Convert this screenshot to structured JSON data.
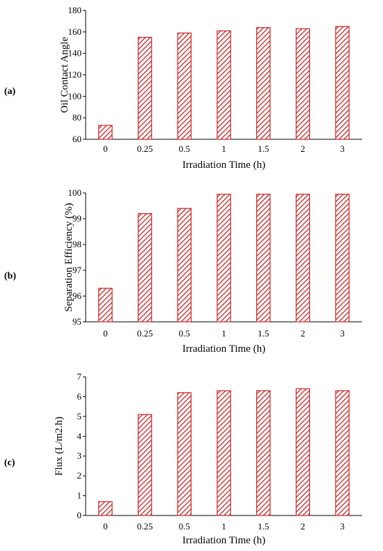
{
  "chart_data": [
    {
      "type": "bar",
      "panel_label": "(a)",
      "categories": [
        "0",
        "0.25",
        "0.5",
        "1",
        "1.5",
        "2",
        "3"
      ],
      "values": [
        73,
        155,
        159,
        161,
        164,
        163,
        165
      ],
      "xlabel": "Irradiation Time (h)",
      "ylabel": "Oil Contact Angle",
      "ylim": [
        60,
        180
      ],
      "yticks": [
        60,
        80,
        100,
        120,
        140,
        160,
        180
      ],
      "grid": false,
      "bar_color": "#cc2222",
      "bar_fill": "hatched"
    },
    {
      "type": "bar",
      "panel_label": "(b)",
      "categories": [
        "0",
        "0.25",
        "0.5",
        "1",
        "1.5",
        "2",
        "3"
      ],
      "values": [
        96.3,
        99.2,
        99.4,
        99.95,
        99.95,
        99.95,
        99.95
      ],
      "xlabel": "Irradiation Time (h)",
      "ylabel": "Separation Efficiency (%)",
      "ylim": [
        95,
        100
      ],
      "yticks": [
        95,
        96,
        97,
        98,
        99,
        100
      ],
      "grid": false,
      "bar_color": "#cc2222",
      "bar_fill": "hatched"
    },
    {
      "type": "bar",
      "panel_label": "(c)",
      "categories": [
        "0",
        "0.25",
        "0.5",
        "1",
        "1.5",
        "2",
        "3"
      ],
      "values": [
        0.7,
        5.1,
        6.2,
        6.3,
        6.3,
        6.4,
        6.3
      ],
      "xlabel": "Irradiation Time (h)",
      "ylabel": "Flux (L/m2.h)",
      "ylim": [
        0,
        7
      ],
      "yticks": [
        0,
        1,
        2,
        3,
        4,
        5,
        6,
        7
      ],
      "grid": false,
      "bar_color": "#cc2222",
      "bar_fill": "hatched"
    }
  ]
}
